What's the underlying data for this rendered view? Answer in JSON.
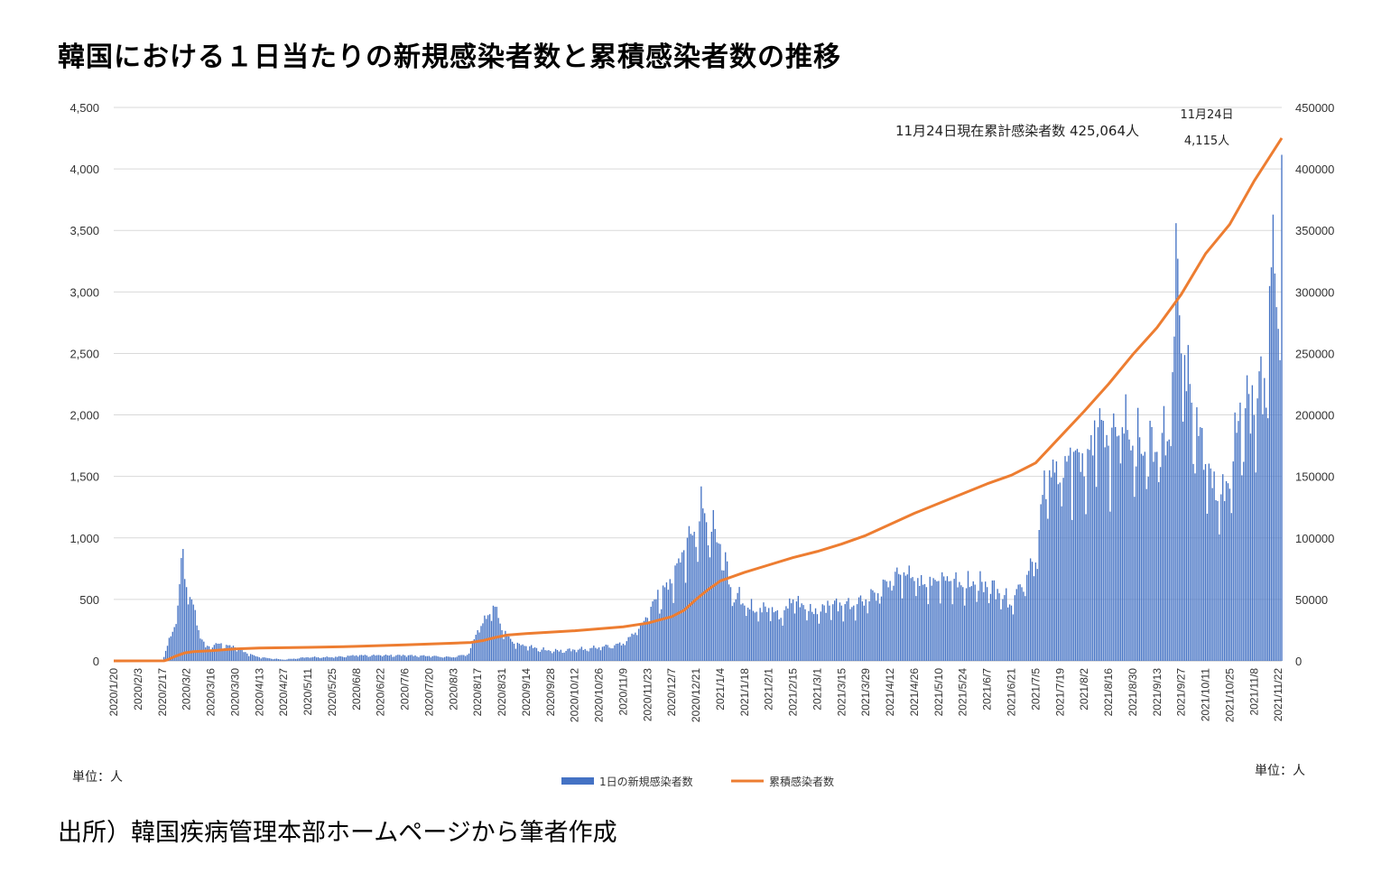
{
  "title": "韓国における１日当たりの新規感染者数と累積感染者数の推移",
  "source": "出所）韓国疾病管理本部ホームページから筆者作成",
  "unit_left": "単位：人",
  "unit_right": "単位：人",
  "colors": {
    "bars": "#4472C4",
    "line": "#ED7D31",
    "grid": "#d9d9d9"
  },
  "chart_data": {
    "type": "bar+line",
    "title": "韓国における１日当たりの新規感染者数と累積感染者数の推移",
    "x_start": "2020/1/20",
    "x_end": "2021/11/24",
    "x_tick_labels": [
      "2020/1/20",
      "2020/2/3",
      "2020/2/17",
      "2020/3/2",
      "2020/3/16",
      "2020/3/30",
      "2020/4/13",
      "2020/4/27",
      "2020/5/11",
      "2020/5/25",
      "2020/6/8",
      "2020/6/22",
      "2020/7/6",
      "2020/7/20",
      "2020/8/3",
      "2020/8/17",
      "2020/8/31",
      "2020/9/14",
      "2020/9/28",
      "2020/10/12",
      "2020/10/26",
      "2020/11/9",
      "2020/11/23",
      "2020/12/7",
      "2020/12/21",
      "2021/1/4",
      "2021/1/18",
      "2021/2/1",
      "2021/2/15",
      "2021/3/1",
      "2021/3/15",
      "2021/3/29",
      "2021/4/12",
      "2021/4/26",
      "2021/5/10",
      "2021/5/24",
      "2021/6/7",
      "2021/6/21",
      "2021/7/5",
      "2021/7/19",
      "2021/8/2",
      "2021/8/16",
      "2021/8/30",
      "2021/9/13",
      "2021/9/27",
      "2021/10/11",
      "2021/10/25",
      "2021/11/8",
      "2021/11/22"
    ],
    "y_left": {
      "ylim": [
        0,
        4500
      ],
      "ticks": [
        "0",
        "500",
        "1,000",
        "1,500",
        "2,000",
        "2,500",
        "3,000",
        "3,500",
        "4,000",
        "4,500"
      ]
    },
    "y_right": {
      "ylim": [
        0,
        450000
      ],
      "ticks": [
        "0",
        "50000",
        "100000",
        "150000",
        "200000",
        "250000",
        "300000",
        "350000",
        "400000",
        "450000"
      ]
    },
    "grid": true,
    "legend_position": "bottom",
    "series": [
      {
        "name": "1日の新規感染者数",
        "type": "bar",
        "axis": "left",
        "anchors": [
          [
            "2020/1/20",
            0
          ],
          [
            "2020/2/17",
            2
          ],
          [
            "2020/2/22",
            200
          ],
          [
            "2020/2/26",
            450
          ],
          [
            "2020/2/29",
            910
          ],
          [
            "2020/3/2",
            600
          ],
          [
            "2020/3/5",
            500
          ],
          [
            "2020/3/9",
            250
          ],
          [
            "2020/3/13",
            110
          ],
          [
            "2020/3/20",
            140
          ],
          [
            "2020/3/30",
            110
          ],
          [
            "2020/4/6",
            60
          ],
          [
            "2020/4/13",
            30
          ],
          [
            "2020/4/27",
            10
          ],
          [
            "2020/5/11",
            30
          ],
          [
            "2020/5/25",
            30
          ],
          [
            "2020/6/8",
            45
          ],
          [
            "2020/6/22",
            45
          ],
          [
            "2020/7/6",
            45
          ],
          [
            "2020/7/20",
            40
          ],
          [
            "2020/8/3",
            30
          ],
          [
            "2020/8/12",
            60
          ],
          [
            "2020/8/17",
            250
          ],
          [
            "2020/8/24",
            380
          ],
          [
            "2020/8/27",
            440
          ],
          [
            "2020/8/31",
            250
          ],
          [
            "2020/9/7",
            140
          ],
          [
            "2020/9/14",
            120
          ],
          [
            "2020/9/28",
            80
          ],
          [
            "2020/10/12",
            90
          ],
          [
            "2020/10/26",
            110
          ],
          [
            "2020/11/9",
            140
          ],
          [
            "2020/11/16",
            230
          ],
          [
            "2020/11/23",
            350
          ],
          [
            "2020/11/27",
            500
          ],
          [
            "2020/12/7",
            630
          ],
          [
            "2020/12/14",
            900
          ],
          [
            "2020/12/20",
            1050
          ],
          [
            "2020/12/25",
            1240
          ],
          [
            "2020/12/30",
            1050
          ],
          [
            "2021/1/4",
            950
          ],
          [
            "2021/1/10",
            600
          ],
          [
            "2021/1/18",
            450
          ],
          [
            "2021/1/25",
            400
          ],
          [
            "2021/2/1",
            430
          ],
          [
            "2021/2/8",
            350
          ],
          [
            "2021/2/15",
            500
          ],
          [
            "2021/2/22",
            420
          ],
          [
            "2021/3/1",
            380
          ],
          [
            "2021/3/8",
            450
          ],
          [
            "2021/3/15",
            450
          ],
          [
            "2021/3/22",
            450
          ],
          [
            "2021/3/29",
            500
          ],
          [
            "2021/4/5",
            550
          ],
          [
            "2021/4/12",
            650
          ],
          [
            "2021/4/20",
            720
          ],
          [
            "2021/4/26",
            650
          ],
          [
            "2021/5/3",
            600
          ],
          [
            "2021/5/10",
            650
          ],
          [
            "2021/5/17",
            650
          ],
          [
            "2021/5/24",
            600
          ],
          [
            "2021/5/31",
            620
          ],
          [
            "2021/6/7",
            600
          ],
          [
            "2021/6/14",
            550
          ],
          [
            "2021/6/21",
            450
          ],
          [
            "2021/6/25",
            620
          ],
          [
            "2021/6/30",
            700
          ],
          [
            "2021/7/5",
            800
          ],
          [
            "2021/7/9",
            1350
          ],
          [
            "2021/7/13",
            1550
          ],
          [
            "2021/7/19",
            1450
          ],
          [
            "2021/7/27",
            1700
          ],
          [
            "2021/8/2",
            1500
          ],
          [
            "2021/8/10",
            1900
          ],
          [
            "2021/8/16",
            1750
          ],
          [
            "2021/8/24",
            1900
          ],
          [
            "2021/8/30",
            1750
          ],
          [
            "2021/9/6",
            1700
          ],
          [
            "2021/9/13",
            1700
          ],
          [
            "2021/9/20",
            1800
          ],
          [
            "2021/9/25",
            3270
          ],
          [
            "2021/9/27",
            2500
          ],
          [
            "2021/10/3",
            2100
          ],
          [
            "2021/10/11",
            1600
          ],
          [
            "2021/10/18",
            1300
          ],
          [
            "2021/10/25",
            1400
          ],
          [
            "2021/10/31",
            2100
          ],
          [
            "2021/11/8",
            2000
          ],
          [
            "2021/11/14",
            2300
          ],
          [
            "2021/11/18",
            3200
          ],
          [
            "2021/11/20",
            3150
          ],
          [
            "2021/11/22",
            2700
          ],
          [
            "2021/11/24",
            4115
          ]
        ]
      },
      {
        "name": "累積感染者数",
        "type": "line",
        "axis": "right",
        "anchors": [
          [
            "2020/1/20",
            0
          ],
          [
            "2020/2/18",
            50
          ],
          [
            "2020/2/20",
            900
          ],
          [
            "2020/2/25",
            4000
          ],
          [
            "2020/3/1",
            6500
          ],
          [
            "2020/3/6",
            7500
          ],
          [
            "2020/3/16",
            8300
          ],
          [
            "2020/3/30",
            9700
          ],
          [
            "2020/4/13",
            10500
          ],
          [
            "2020/5/11",
            11000
          ],
          [
            "2020/6/8",
            11800
          ],
          [
            "2020/7/6",
            13000
          ],
          [
            "2020/8/3",
            14400
          ],
          [
            "2020/8/13",
            15000
          ],
          [
            "2020/8/20",
            16500
          ],
          [
            "2020/8/27",
            19000
          ],
          [
            "2020/9/3",
            21000
          ],
          [
            "2020/9/14",
            22200
          ],
          [
            "2020/10/12",
            24500
          ],
          [
            "2020/11/9",
            27700
          ],
          [
            "2020/11/23",
            30700
          ],
          [
            "2020/12/7",
            36000
          ],
          [
            "2020/12/14",
            41000
          ],
          [
            "2020/12/21",
            50000
          ],
          [
            "2020/12/28",
            58000
          ],
          [
            "2021/1/4",
            65000
          ],
          [
            "2021/1/18",
            72000
          ],
          [
            "2021/2/1",
            78000
          ],
          [
            "2021/2/15",
            84000
          ],
          [
            "2021/3/1",
            89000
          ],
          [
            "2021/3/15",
            95000
          ],
          [
            "2021/3/29",
            102000
          ],
          [
            "2021/4/12",
            111000
          ],
          [
            "2021/4/26",
            120000
          ],
          [
            "2021/5/10",
            128000
          ],
          [
            "2021/5/24",
            136000
          ],
          [
            "2021/6/7",
            144000
          ],
          [
            "2021/6/21",
            151000
          ],
          [
            "2021/7/5",
            161000
          ],
          [
            "2021/7/19",
            182000
          ],
          [
            "2021/8/2",
            203000
          ],
          [
            "2021/8/16",
            225000
          ],
          [
            "2021/8/30",
            249000
          ],
          [
            "2021/9/13",
            271000
          ],
          [
            "2021/9/27",
            298000
          ],
          [
            "2021/10/11",
            331000
          ],
          [
            "2021/10/25",
            355000
          ],
          [
            "2021/11/8",
            390000
          ],
          [
            "2021/11/24",
            425064
          ]
        ]
      }
    ],
    "annotations": {
      "cumulative": "11月24日現在累計感染者数 425,064人",
      "peak_date": "11月24日",
      "peak_value": "4,115人"
    }
  }
}
